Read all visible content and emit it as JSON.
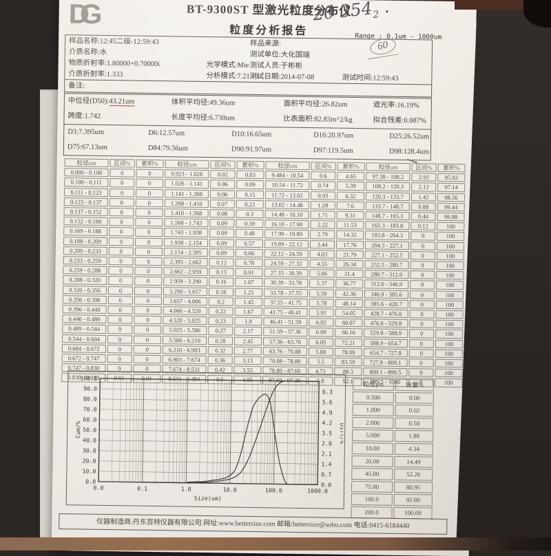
{
  "header": {
    "logo": "DG",
    "title_line1": "BT-9300ST 型激光粒度分布仪",
    "title_line2": "粒度分析报告",
    "handwriting_top": "2θ 354",
    "handwriting_top_sub": "2",
    "handwriting_circle": "60",
    "range_label": "Range : 0.1um - 1000um"
  },
  "info": {
    "sample_name": "样品名称:12:45二级-12:59:43",
    "sample_source": "样品来源:",
    "medium_name": "介质名称:水",
    "test_unit": "测试单位:大化国瑞",
    "material_refractive": "物质折射率:1.80000+0.70000i",
    "optical_mode": "光学模式:Mie",
    "tester": "测试人员:于彬彬",
    "medium_refractive": "介质折射率:1.333",
    "analysis_mode": "分析模式:7.21 - 1",
    "test_date": "测试日期:2014-07-08",
    "test_time": "测试时间:12:59:43",
    "remark": "备注:"
  },
  "results": {
    "d50_label": "中位径(D50):",
    "d50_value": "43.21um",
    "volume_mean": "体积平均径:49.36um",
    "area_mean": "面积平均径:26.82um",
    "obscuration": "遮光率:16.19%",
    "span": "跨度:1.742",
    "length_mean": "长度平均径:6.730um",
    "specific_surface": "比表面积:82.83m^2/kg",
    "fit_residual": "拟合残差:0.087%",
    "d_row1": [
      "D3:7.395um",
      "D6:12.57um",
      "D10:16.65um",
      "D16:20.97um",
      "D25:26.52um"
    ],
    "d_row2": [
      "D75:67.13um",
      "D84:79.56um",
      "D90:91.97um",
      "D97:119.5um",
      "D98:128.4um"
    ],
    "d_row2_underlined_index": 3
  },
  "main_table": {
    "headers": [
      "粒径um",
      "区间%",
      "累积%"
    ],
    "groups": [
      {
        "rows": [
          [
            "0.000 - 0.100",
            "0",
            "0"
          ],
          [
            "0.100 - 0.111",
            "0",
            "0"
          ],
          [
            "0.111 - 0.123",
            "0",
            "0"
          ],
          [
            "0.123 - 0.137",
            "0",
            "0"
          ],
          [
            "0.137 - 0.152",
            "0",
            "0"
          ],
          [
            "0.152 - 0.169",
            "0",
            "0"
          ],
          [
            "0.169 - 0.188",
            "0",
            "0"
          ],
          [
            "0.188 - 0.209",
            "0",
            "0"
          ],
          [
            "0.209 - 0.233",
            "0",
            "0"
          ],
          [
            "0.233 - 0.259",
            "0",
            "0"
          ],
          [
            "0.259 - 0.288",
            "0",
            "0"
          ],
          [
            "0.288 - 0.320",
            "0",
            "0"
          ],
          [
            "0.320 - 0.356",
            "0",
            "0"
          ],
          [
            "0.356 - 0.396",
            "0",
            "0"
          ],
          [
            "0.396 - 0.440",
            "0",
            "0"
          ],
          [
            "0.440 - 0.489",
            "0",
            "0"
          ],
          [
            "0.489 - 0.544",
            "0",
            "0"
          ],
          [
            "0.544 - 0.604",
            "0",
            "0"
          ],
          [
            "0.604 - 0.672",
            "0",
            "0"
          ],
          [
            "0.672 - 0.747",
            "0",
            "0"
          ],
          [
            "0.747 - 0.830",
            "0",
            "0"
          ],
          [
            "0.830 - 0.923",
            "0.01",
            "0.01"
          ]
        ]
      },
      {
        "rows": [
          [
            "0.923 - 1.026",
            "0.02",
            "0.03"
          ],
          [
            "1.026 - 1.141",
            "0.06",
            "0.09"
          ],
          [
            "1.141 - 1.268",
            "0.06",
            "0.15"
          ],
          [
            "1.268 - 1.410",
            "0.07",
            "0.22"
          ],
          [
            "1.410 - 1.568",
            "0.08",
            "0.3"
          ],
          [
            "1.568 - 1.743",
            "0.09",
            "0.39"
          ],
          [
            "1.743 - 1.938",
            "0.09",
            "0.48"
          ],
          [
            "1.938 - 2.154",
            "0.09",
            "0.57"
          ],
          [
            "2.154 - 2.395",
            "0.09",
            "0.66"
          ],
          [
            "2.395 - 2.662",
            "0.12",
            "0.78"
          ],
          [
            "2.662 - 2.959",
            "0.13",
            "0.91"
          ],
          [
            "2.959 - 3.290",
            "0.16",
            "1.07"
          ],
          [
            "3.290 - 3.657",
            "0.18",
            "1.25"
          ],
          [
            "3.657 - 4.066",
            "0.2",
            "1.45"
          ],
          [
            "4.066 - 4.520",
            "0.22",
            "1.67"
          ],
          [
            "4.520 - 5.025",
            "0.23",
            "1.9"
          ],
          [
            "5.025 - 5.586",
            "0.27",
            "2.17"
          ],
          [
            "5.586 - 6.210",
            "0.28",
            "2.45"
          ],
          [
            "6.210 - 6.903",
            "0.32",
            "2.77"
          ],
          [
            "6.903 - 7.674",
            "0.36",
            "3.13"
          ],
          [
            "7.674 - 8.531",
            "0.42",
            "3.55"
          ],
          [
            "8.531 - 9.484",
            "0.5",
            "4.05"
          ]
        ]
      },
      {
        "rows": [
          [
            "9.484 - 10.54",
            "0.6",
            "4.65"
          ],
          [
            "10.54 - 11.72",
            "0.74",
            "5.39"
          ],
          [
            "11.72 - 13.02",
            "0.93",
            "6.32"
          ],
          [
            "13.02 - 14.48",
            "1.28",
            "7.6"
          ],
          [
            "14.48 - 16.10",
            "1.71",
            "9.31"
          ],
          [
            "16.10 - 17.90",
            "2.22",
            "11.53"
          ],
          [
            "17.90 - 19.89",
            "2.79",
            "14.32"
          ],
          [
            "19.89 - 22.12",
            "3.44",
            "17.76"
          ],
          [
            "22.12 - 24.59",
            "4.03",
            "21.79"
          ],
          [
            "24.59 - 27.33",
            "4.55",
            "26.34"
          ],
          [
            "27.33 - 30.39",
            "5.06",
            "31.4"
          ],
          [
            "30.39 - 33.78",
            "5.37",
            "36.77"
          ],
          [
            "33.78 - 37.55",
            "5.59",
            "42.36"
          ],
          [
            "37.55 - 41.75",
            "5.78",
            "48.14"
          ],
          [
            "41.75 - 46.41",
            "5.91",
            "54.05"
          ],
          [
            "46.41 - 51.59",
            "6.02",
            "60.07"
          ],
          [
            "51.59 - 57.36",
            "6.09",
            "66.16"
          ],
          [
            "57.36 - 63.76",
            "6.05",
            "72.21"
          ],
          [
            "63.76 - 70.88",
            "5.88",
            "78.09"
          ],
          [
            "70.88 - 78.80",
            "5.5",
            "83.59"
          ],
          [
            "78.80 - 87.60",
            "4.71",
            "88.3"
          ],
          [
            "87.60 - 97.38",
            "3.8",
            "92.1"
          ]
        ]
      },
      {
        "rows": [
          [
            "97.38 - 108.2",
            "2.92",
            "95.02"
          ],
          [
            "108.2 - 120.3",
            "2.12",
            "97.14"
          ],
          [
            "120.3 - 133.7",
            "1.42",
            "98.56"
          ],
          [
            "133.7 - 148.7",
            "0.88",
            "99.44"
          ],
          [
            "148.7 - 165.3",
            "0.44",
            "99.88"
          ],
          [
            "165.3 - 183.8",
            "0.12",
            "100"
          ],
          [
            "183.8 - 204.3",
            "0",
            "100"
          ],
          [
            "204.3 - 227.1",
            "0",
            "100"
          ],
          [
            "227.1 - 252.5",
            "0",
            "100"
          ],
          [
            "252.5 - 280.7",
            "0",
            "100"
          ],
          [
            "280.7 - 312.0",
            "0",
            "100"
          ],
          [
            "312.0 - 346.9",
            "0",
            "100"
          ],
          [
            "346.9 - 385.6",
            "0",
            "100"
          ],
          [
            "385.6 - 428.7",
            "0",
            "100"
          ],
          [
            "428.7 - 476.6",
            "0",
            "100"
          ],
          [
            "476.6 - 529.8",
            "0",
            "100"
          ],
          [
            "529.8 - 588.9",
            "0",
            "100"
          ],
          [
            "588.9 - 654.7",
            "0",
            "100"
          ],
          [
            "654.7 - 727.8",
            "0",
            "100"
          ],
          [
            "727.8 - 809.1",
            "0",
            "100"
          ],
          [
            "809.1 - 899.5",
            "0",
            "100"
          ],
          [
            "899.5 - 1000",
            "0",
            "100"
          ]
        ]
      }
    ]
  },
  "chart_data": {
    "type": "line",
    "xlabel": "Size(um)",
    "ylabel_left": "Cum/%",
    "ylabel_right": "Diff/%",
    "x_scale": "log",
    "x_range": [
      0.01,
      1000
    ],
    "ylim_left": [
      0,
      100
    ],
    "ylim_right": [
      0,
      7
    ],
    "grid": true,
    "x_ticks": [
      "0.0",
      "0.1",
      "1.0",
      "10.0",
      "100.0",
      "1000.0"
    ],
    "y_left_ticks": [
      "0.0",
      "10.0",
      "20.0",
      "30.0",
      "40.0",
      "50.0",
      "60.0",
      "70.0",
      "80.0",
      "90.0",
      "100.0"
    ],
    "y_right_ticks": [
      "0.0",
      "0.7",
      "1.4",
      "2.1",
      "2.8",
      "3.5",
      "4.2",
      "4.9",
      "5.6",
      "6.3"
    ],
    "x": [
      0.1,
      0.111,
      0.123,
      0.137,
      0.152,
      0.169,
      0.188,
      0.209,
      0.233,
      0.259,
      0.288,
      0.32,
      0.356,
      0.396,
      0.44,
      0.489,
      0.544,
      0.604,
      0.672,
      0.747,
      0.83,
      0.923,
      1.026,
      1.141,
      1.268,
      1.41,
      1.568,
      1.743,
      1.938,
      2.154,
      2.395,
      2.662,
      2.959,
      3.29,
      3.657,
      4.066,
      4.52,
      5.025,
      5.586,
      6.21,
      6.903,
      7.674,
      8.531,
      9.484,
      10.54,
      11.72,
      13.02,
      14.48,
      16.1,
      17.9,
      19.89,
      22.12,
      24.59,
      27.33,
      30.39,
      33.78,
      37.55,
      41.75,
      46.41,
      51.59,
      57.36,
      63.76,
      70.88,
      78.8,
      87.6,
      97.38,
      108.2,
      120.3,
      133.7,
      148.7,
      165.3,
      183.8,
      204.3,
      227.1,
      252.5,
      280.7,
      312.0,
      346.9,
      385.6,
      428.7,
      476.6,
      529.8,
      588.9,
      654.7,
      727.8,
      809.1,
      899.5,
      1000
    ],
    "series": [
      {
        "name": "cumulative",
        "axis": "left",
        "y": [
          0,
          0,
          0,
          0,
          0,
          0,
          0,
          0,
          0,
          0,
          0,
          0,
          0,
          0,
          0,
          0,
          0,
          0,
          0,
          0,
          0,
          0.01,
          0.03,
          0.09,
          0.15,
          0.22,
          0.3,
          0.39,
          0.48,
          0.57,
          0.66,
          0.78,
          0.91,
          1.07,
          1.25,
          1.45,
          1.67,
          1.9,
          2.17,
          2.45,
          2.77,
          3.13,
          3.55,
          4.05,
          4.65,
          5.39,
          6.32,
          7.6,
          9.31,
          11.53,
          14.32,
          17.76,
          21.79,
          26.34,
          31.4,
          36.77,
          42.36,
          48.14,
          54.05,
          60.07,
          66.16,
          72.21,
          78.09,
          83.59,
          88.3,
          92.1,
          95.02,
          97.14,
          98.56,
          99.44,
          99.88,
          100,
          100,
          100,
          100,
          100,
          100,
          100,
          100,
          100,
          100,
          100,
          100,
          100,
          100,
          100,
          100,
          100
        ]
      },
      {
        "name": "differential",
        "axis": "right",
        "y": [
          0,
          0,
          0,
          0,
          0,
          0,
          0,
          0,
          0,
          0,
          0,
          0,
          0,
          0,
          0,
          0,
          0,
          0,
          0,
          0,
          0,
          0.01,
          0.02,
          0.06,
          0.06,
          0.07,
          0.08,
          0.09,
          0.09,
          0.09,
          0.09,
          0.12,
          0.13,
          0.16,
          0.18,
          0.2,
          0.22,
          0.23,
          0.27,
          0.28,
          0.32,
          0.36,
          0.42,
          0.5,
          0.6,
          0.74,
          0.93,
          1.28,
          1.71,
          2.22,
          2.79,
          3.44,
          4.03,
          4.55,
          5.06,
          5.37,
          5.59,
          5.78,
          5.91,
          6.02,
          6.09,
          6.05,
          5.88,
          5.5,
          4.71,
          3.8,
          2.92,
          2.12,
          1.42,
          0.88,
          0.44,
          0.12,
          0,
          0,
          0,
          0,
          0,
          0,
          0,
          0,
          0,
          0,
          0,
          0,
          0,
          0,
          0,
          0
        ]
      }
    ]
  },
  "side_table": {
    "headers": [
      "粒径μm",
      "含量%"
    ],
    "rows": [
      [
        "0.500",
        "0.00"
      ],
      [
        "1.000",
        "0.02"
      ],
      [
        "2.000",
        "0.50"
      ],
      [
        "5.000",
        "1.88"
      ],
      [
        "10.00",
        "4.34"
      ],
      [
        "20.00",
        "14.49"
      ],
      [
        "45.00",
        "52.26"
      ],
      [
        "75.00",
        "80.95"
      ],
      [
        "100.0",
        "92.80"
      ],
      [
        "200.0",
        "100.00"
      ]
    ]
  },
  "footer": {
    "text": "仪器制造商:丹东百特仪器有限公司  网址:www.bettersize.com  邮箱:bettersize@sohu.com  电话:0415-6184440"
  },
  "colors": {
    "paper": "#f4f1ec",
    "ink": "#46423e",
    "pen_red": "#9b4a35",
    "pink_tab": "#cf5b88",
    "wood": "#8a6a51",
    "backdrop": "#2b2725"
  }
}
